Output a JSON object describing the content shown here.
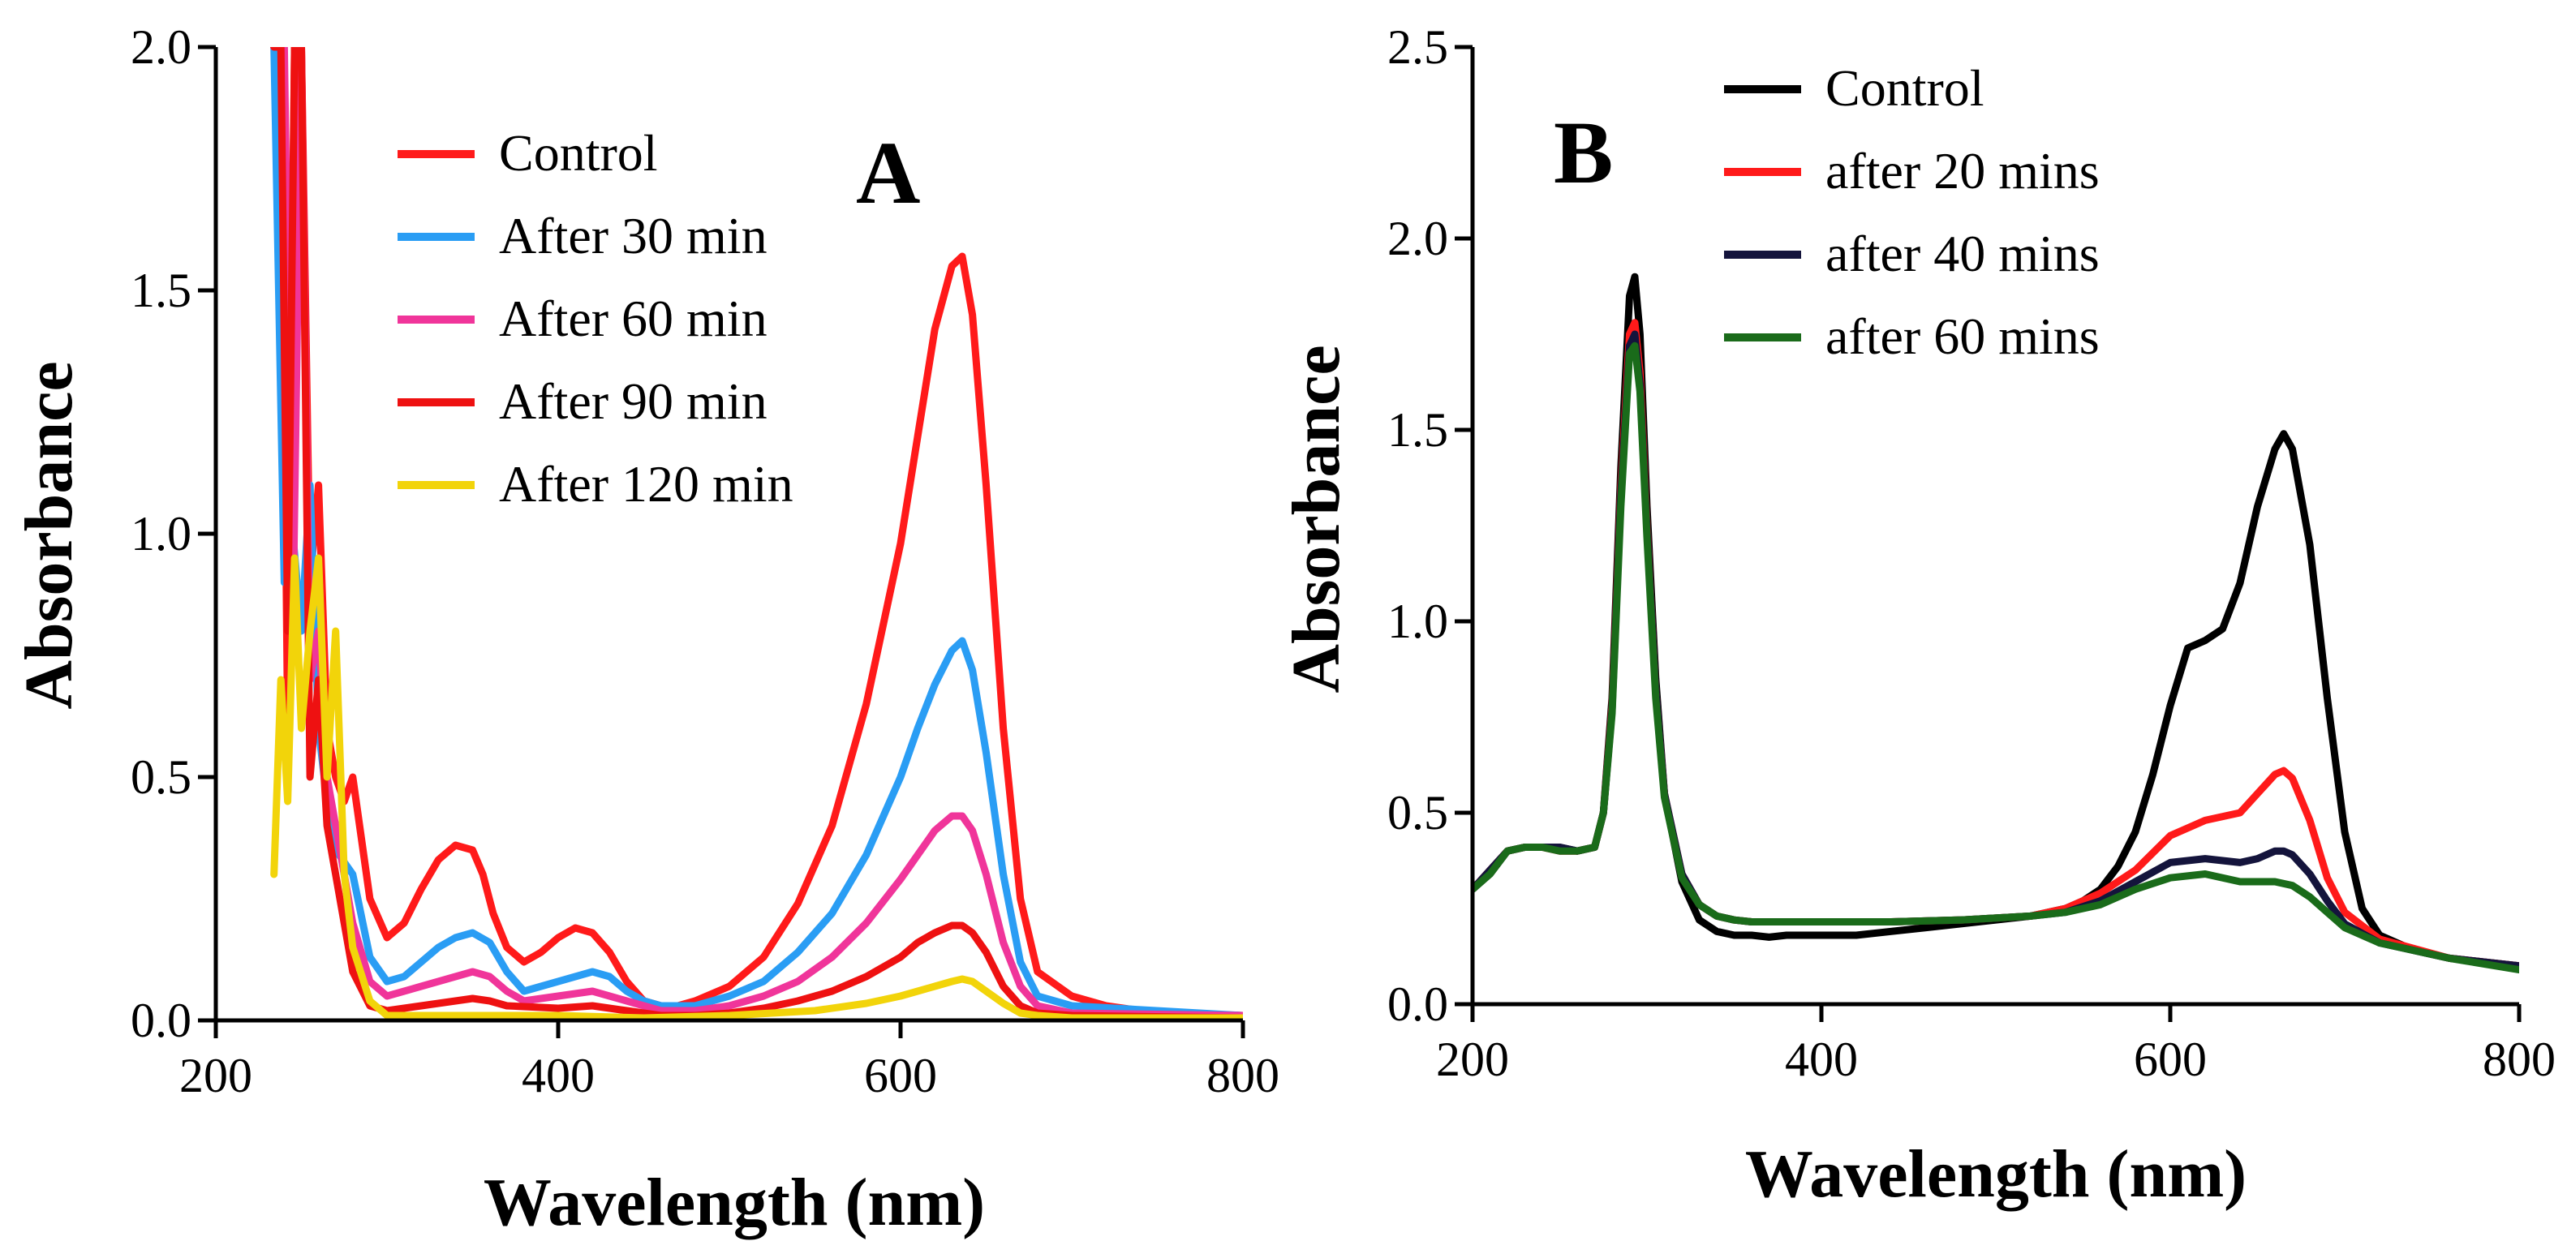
{
  "chart_data": [
    {
      "panel": "A",
      "type": "line",
      "panel_label": "A",
      "xlabel": "Wavelength (nm)",
      "ylabel": "Absorbance",
      "xlim": [
        200,
        800
      ],
      "ylim": [
        0,
        2.0
      ],
      "xticks": [
        200,
        400,
        600,
        800
      ],
      "xtick_labels": [
        "200",
        "400",
        "600",
        "800"
      ],
      "yticks": [
        0,
        0.5,
        1.0,
        1.5,
        2.0
      ],
      "ytick_labels": [
        "0.0",
        "0.5",
        "1.0",
        "1.5",
        "2.0"
      ],
      "legend_position": "top-center",
      "series": [
        {
          "name": "Control",
          "color": "#ff1a1a",
          "x": [
            234,
            238,
            242,
            246,
            250,
            255,
            260,
            265,
            270,
            275,
            280,
            290,
            300,
            310,
            320,
            330,
            340,
            350,
            356,
            362,
            370,
            380,
            390,
            400,
            410,
            420,
            430,
            440,
            450,
            460,
            470,
            480,
            500,
            520,
            540,
            560,
            580,
            600,
            610,
            620,
            630,
            636,
            642,
            650,
            660,
            670,
            680,
            700,
            720,
            740,
            760,
            800
          ],
          "y": [
            2.0,
            2.0,
            0.6,
            2.0,
            2.0,
            0.9,
            1.1,
            0.6,
            0.5,
            0.45,
            0.5,
            0.25,
            0.17,
            0.2,
            0.27,
            0.33,
            0.36,
            0.35,
            0.3,
            0.22,
            0.15,
            0.12,
            0.14,
            0.17,
            0.19,
            0.18,
            0.14,
            0.08,
            0.04,
            0.03,
            0.03,
            0.04,
            0.07,
            0.13,
            0.24,
            0.4,
            0.65,
            0.98,
            1.2,
            1.42,
            1.55,
            1.57,
            1.45,
            1.1,
            0.6,
            0.25,
            0.1,
            0.05,
            0.03,
            0.02,
            0.015,
            0.01
          ]
        },
        {
          "name": "After 30 min",
          "color": "#2a9df4",
          "x": [
            234,
            240,
            245,
            250,
            255,
            260,
            265,
            270,
            280,
            290,
            300,
            310,
            320,
            330,
            340,
            350,
            360,
            370,
            380,
            390,
            400,
            410,
            420,
            430,
            440,
            450,
            460,
            480,
            500,
            520,
            540,
            560,
            580,
            600,
            610,
            620,
            630,
            636,
            642,
            650,
            660,
            670,
            680,
            700,
            800
          ],
          "y": [
            2.0,
            0.9,
            1.0,
            0.8,
            1.1,
            0.6,
            0.45,
            0.35,
            0.3,
            0.13,
            0.08,
            0.09,
            0.12,
            0.15,
            0.17,
            0.18,
            0.16,
            0.1,
            0.06,
            0.07,
            0.08,
            0.09,
            0.1,
            0.09,
            0.06,
            0.04,
            0.03,
            0.03,
            0.05,
            0.08,
            0.14,
            0.22,
            0.34,
            0.5,
            0.6,
            0.69,
            0.76,
            0.78,
            0.72,
            0.55,
            0.3,
            0.12,
            0.05,
            0.03,
            0.01
          ]
        },
        {
          "name": "After 60 min",
          "color": "#f0359a",
          "x": [
            234,
            240,
            245,
            250,
            255,
            260,
            265,
            270,
            280,
            290,
            300,
            320,
            340,
            350,
            360,
            370,
            380,
            400,
            420,
            430,
            440,
            450,
            460,
            480,
            500,
            520,
            540,
            560,
            580,
            600,
            610,
            620,
            630,
            636,
            642,
            650,
            660,
            670,
            680,
            700,
            800
          ],
          "y": [
            2.0,
            2.0,
            0.8,
            2.0,
            0.7,
            0.8,
            0.5,
            0.4,
            0.2,
            0.08,
            0.05,
            0.07,
            0.09,
            0.1,
            0.09,
            0.06,
            0.04,
            0.05,
            0.06,
            0.05,
            0.04,
            0.03,
            0.02,
            0.02,
            0.03,
            0.05,
            0.08,
            0.13,
            0.2,
            0.29,
            0.34,
            0.39,
            0.42,
            0.42,
            0.39,
            0.3,
            0.16,
            0.07,
            0.03,
            0.015,
            0.01
          ]
        },
        {
          "name": "After 90 min",
          "color": "#ee1111",
          "x": [
            234,
            238,
            242,
            246,
            250,
            255,
            260,
            265,
            270,
            280,
            290,
            300,
            320,
            340,
            350,
            360,
            370,
            400,
            420,
            440,
            460,
            480,
            500,
            520,
            540,
            560,
            580,
            600,
            610,
            620,
            630,
            636,
            642,
            650,
            660,
            670,
            680,
            700,
            800
          ],
          "y": [
            2.0,
            2.0,
            0.8,
            2.0,
            2.0,
            0.5,
            0.7,
            0.4,
            0.3,
            0.1,
            0.03,
            0.02,
            0.03,
            0.04,
            0.045,
            0.04,
            0.03,
            0.025,
            0.03,
            0.02,
            0.01,
            0.01,
            0.015,
            0.025,
            0.04,
            0.06,
            0.09,
            0.13,
            0.16,
            0.18,
            0.195,
            0.195,
            0.18,
            0.14,
            0.07,
            0.03,
            0.015,
            0.01,
            0.005
          ]
        },
        {
          "name": "After 120 min",
          "color": "#f2d40a",
          "x": [
            234,
            238,
            242,
            246,
            250,
            255,
            260,
            265,
            270,
            275,
            280,
            290,
            300,
            350,
            400,
            450,
            500,
            550,
            580,
            600,
            620,
            630,
            636,
            642,
            650,
            660,
            670,
            680,
            700,
            800
          ],
          "y": [
            0.3,
            0.7,
            0.45,
            0.95,
            0.6,
            0.8,
            0.95,
            0.5,
            0.8,
            0.3,
            0.15,
            0.04,
            0.01,
            0.01,
            0.01,
            0.005,
            0.01,
            0.02,
            0.035,
            0.05,
            0.07,
            0.08,
            0.085,
            0.08,
            0.06,
            0.035,
            0.015,
            0.01,
            0.005,
            0.005
          ]
        }
      ]
    },
    {
      "panel": "B",
      "type": "line",
      "panel_label": "B",
      "xlabel": "Wavelength (nm)",
      "ylabel": "Absorbance",
      "xlim": [
        200,
        800
      ],
      "ylim": [
        0,
        2.5
      ],
      "xticks": [
        200,
        400,
        600,
        800
      ],
      "xtick_labels": [
        "200",
        "400",
        "600",
        "800"
      ],
      "yticks": [
        0,
        0.5,
        1.0,
        1.5,
        2.0,
        2.5
      ],
      "ytick_labels": [
        "0.0",
        "0.5",
        "1.0",
        "1.5",
        "2.0",
        "2.5"
      ],
      "legend_position": "top-center",
      "series": [
        {
          "name": "Control",
          "color": "#000000",
          "x": [
            200,
            210,
            220,
            230,
            240,
            250,
            260,
            270,
            275,
            280,
            285,
            290,
            293,
            296,
            300,
            305,
            310,
            320,
            330,
            340,
            350,
            360,
            370,
            380,
            400,
            420,
            440,
            460,
            480,
            500,
            520,
            540,
            550,
            560,
            570,
            580,
            590,
            600,
            610,
            620,
            630,
            640,
            650,
            660,
            665,
            670,
            680,
            690,
            700,
            710,
            720,
            740,
            760,
            800
          ],
          "y": [
            0.3,
            0.34,
            0.4,
            0.41,
            0.41,
            0.41,
            0.4,
            0.41,
            0.5,
            0.8,
            1.4,
            1.85,
            1.9,
            1.75,
            1.3,
            0.85,
            0.55,
            0.32,
            0.22,
            0.19,
            0.18,
            0.18,
            0.175,
            0.18,
            0.18,
            0.18,
            0.19,
            0.2,
            0.21,
            0.22,
            0.23,
            0.25,
            0.27,
            0.3,
            0.36,
            0.45,
            0.6,
            0.78,
            0.93,
            0.95,
            0.98,
            1.1,
            1.3,
            1.45,
            1.49,
            1.45,
            1.2,
            0.8,
            0.45,
            0.25,
            0.18,
            0.14,
            0.12,
            0.1
          ]
        },
        {
          "name": "after 20 mins",
          "color": "#ff1a1a",
          "x": [
            200,
            210,
            220,
            230,
            240,
            250,
            260,
            270,
            275,
            280,
            285,
            290,
            293,
            296,
            300,
            305,
            310,
            320,
            330,
            340,
            350,
            360,
            380,
            400,
            440,
            480,
            520,
            540,
            560,
            580,
            600,
            620,
            640,
            650,
            660,
            665,
            670,
            680,
            690,
            700,
            720,
            760,
            800
          ],
          "y": [
            0.3,
            0.35,
            0.4,
            0.41,
            0.41,
            0.4,
            0.4,
            0.41,
            0.5,
            0.78,
            1.35,
            1.75,
            1.78,
            1.65,
            1.25,
            0.82,
            0.55,
            0.34,
            0.26,
            0.23,
            0.22,
            0.215,
            0.215,
            0.215,
            0.215,
            0.22,
            0.23,
            0.25,
            0.29,
            0.35,
            0.44,
            0.48,
            0.5,
            0.55,
            0.6,
            0.61,
            0.59,
            0.48,
            0.33,
            0.24,
            0.17,
            0.12,
            0.1
          ]
        },
        {
          "name": "after 40 mins",
          "color": "#14143c",
          "x": [
            200,
            210,
            220,
            230,
            240,
            250,
            260,
            270,
            275,
            280,
            285,
            290,
            293,
            296,
            300,
            305,
            310,
            320,
            330,
            340,
            350,
            360,
            380,
            400,
            440,
            480,
            520,
            540,
            560,
            580,
            600,
            620,
            640,
            650,
            660,
            665,
            670,
            680,
            690,
            700,
            720,
            760,
            800
          ],
          "y": [
            0.3,
            0.35,
            0.4,
            0.41,
            0.41,
            0.41,
            0.4,
            0.41,
            0.5,
            0.77,
            1.33,
            1.72,
            1.75,
            1.62,
            1.24,
            0.82,
            0.55,
            0.34,
            0.26,
            0.23,
            0.22,
            0.215,
            0.215,
            0.215,
            0.215,
            0.22,
            0.23,
            0.24,
            0.27,
            0.32,
            0.37,
            0.38,
            0.37,
            0.38,
            0.4,
            0.4,
            0.39,
            0.34,
            0.27,
            0.21,
            0.16,
            0.12,
            0.1
          ]
        },
        {
          "name": "after 60 mins",
          "color": "#1a6b1a",
          "x": [
            200,
            210,
            220,
            230,
            240,
            250,
            260,
            270,
            275,
            280,
            285,
            290,
            293,
            296,
            300,
            305,
            310,
            320,
            330,
            340,
            350,
            360,
            380,
            400,
            440,
            480,
            520,
            540,
            560,
            580,
            600,
            620,
            640,
            660,
            670,
            680,
            690,
            700,
            720,
            760,
            800
          ],
          "y": [
            0.3,
            0.34,
            0.4,
            0.41,
            0.41,
            0.4,
            0.4,
            0.41,
            0.5,
            0.76,
            1.3,
            1.7,
            1.72,
            1.6,
            1.22,
            0.8,
            0.54,
            0.33,
            0.26,
            0.23,
            0.22,
            0.215,
            0.215,
            0.215,
            0.215,
            0.22,
            0.23,
            0.24,
            0.26,
            0.3,
            0.33,
            0.34,
            0.32,
            0.32,
            0.31,
            0.28,
            0.24,
            0.2,
            0.16,
            0.12,
            0.09
          ]
        }
      ]
    }
  ]
}
